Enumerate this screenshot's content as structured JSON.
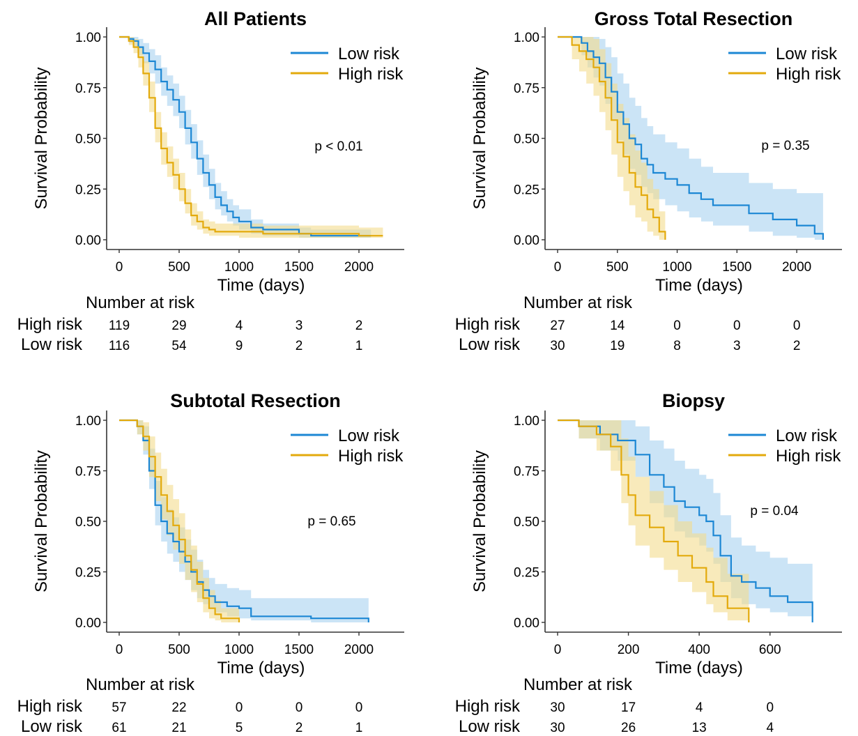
{
  "colors": {
    "low_risk": "#1c87d4",
    "high_risk": "#e3aa0c",
    "low_fill": "#a8d2f0",
    "high_fill": "#f3dc8e",
    "axis": "#333333"
  },
  "chart_data": [
    {
      "type": "line",
      "title": "All Patients",
      "xlabel": "Time (days)",
      "ylabel": "Survival Probability",
      "xlim": [
        0,
        2250
      ],
      "ylim": [
        0,
        1
      ],
      "xticks": [
        0,
        500,
        1000,
        1500,
        2000
      ],
      "yticks": [
        "0.00",
        "0.25",
        "0.50",
        "0.75",
        "1.00"
      ],
      "legend_position": "top-right",
      "pvalue": "p < 0.01",
      "series": [
        {
          "name": "Low risk",
          "color": "#1c87d4",
          "x": [
            0,
            40,
            80,
            120,
            160,
            200,
            250,
            300,
            350,
            400,
            450,
            500,
            550,
            600,
            650,
            700,
            750,
            800,
            850,
            900,
            950,
            1000,
            1100,
            1200,
            1300,
            1500,
            1600,
            1800,
            2000,
            2100
          ],
          "y": [
            1.0,
            1.0,
            0.99,
            0.98,
            0.95,
            0.92,
            0.88,
            0.84,
            0.78,
            0.74,
            0.69,
            0.63,
            0.55,
            0.48,
            0.4,
            0.33,
            0.27,
            0.21,
            0.17,
            0.14,
            0.11,
            0.09,
            0.06,
            0.05,
            0.05,
            0.03,
            0.02,
            0.02,
            0.02,
            0.02
          ],
          "lower": [
            1.0,
            1.0,
            0.97,
            0.95,
            0.91,
            0.87,
            0.82,
            0.77,
            0.71,
            0.66,
            0.61,
            0.55,
            0.47,
            0.4,
            0.32,
            0.26,
            0.2,
            0.15,
            0.12,
            0.09,
            0.07,
            0.05,
            0.03,
            0.02,
            0.02,
            0.01,
            0.01,
            0.01,
            0.01,
            0.01
          ],
          "upper": [
            1.0,
            1.0,
            1.0,
            1.0,
            0.99,
            0.97,
            0.94,
            0.91,
            0.85,
            0.81,
            0.77,
            0.71,
            0.64,
            0.57,
            0.49,
            0.42,
            0.35,
            0.28,
            0.24,
            0.2,
            0.17,
            0.15,
            0.1,
            0.08,
            0.08,
            0.06,
            0.05,
            0.05,
            0.05,
            0.05
          ]
        },
        {
          "name": "High risk",
          "color": "#e3aa0c",
          "x": [
            0,
            40,
            80,
            120,
            160,
            200,
            250,
            300,
            350,
            400,
            450,
            500,
            550,
            600,
            650,
            700,
            750,
            800,
            900,
            1000,
            1200,
            1500,
            2000,
            2200
          ],
          "y": [
            1.0,
            1.0,
            0.98,
            0.95,
            0.9,
            0.82,
            0.7,
            0.55,
            0.45,
            0.38,
            0.32,
            0.25,
            0.18,
            0.12,
            0.09,
            0.06,
            0.05,
            0.04,
            0.04,
            0.04,
            0.03,
            0.03,
            0.02,
            0.02
          ],
          "lower": [
            1.0,
            1.0,
            0.96,
            0.92,
            0.85,
            0.76,
            0.63,
            0.48,
            0.37,
            0.31,
            0.25,
            0.19,
            0.13,
            0.07,
            0.05,
            0.03,
            0.02,
            0.02,
            0.02,
            0.01,
            0.01,
            0.01,
            0.01,
            0.01
          ],
          "upper": [
            1.0,
            1.0,
            1.0,
            0.99,
            0.95,
            0.88,
            0.78,
            0.63,
            0.53,
            0.46,
            0.4,
            0.33,
            0.25,
            0.18,
            0.14,
            0.1,
            0.09,
            0.08,
            0.08,
            0.08,
            0.07,
            0.07,
            0.06,
            0.06
          ]
        }
      ],
      "risk_table": {
        "title": "Number at risk",
        "times": [
          0,
          500,
          1000,
          1500,
          2000
        ],
        "rows": [
          {
            "label": "High risk",
            "values": [
              "119",
              "29",
              "4",
              "3",
              "2"
            ]
          },
          {
            "label": "Low risk",
            "values": [
              "116",
              "54",
              "9",
              "2",
              "1"
            ]
          }
        ]
      }
    },
    {
      "type": "line",
      "title": "Gross Total Resection",
      "xlabel": "Time (days)",
      "ylabel": "Survival Probability",
      "xlim": [
        0,
        2250
      ],
      "ylim": [
        0,
        1
      ],
      "xticks": [
        0,
        500,
        1000,
        1500,
        2000
      ],
      "yticks": [
        "0.00",
        "0.25",
        "0.50",
        "0.75",
        "1.00"
      ],
      "legend_position": "top-right",
      "pvalue": "p = 0.35",
      "series": [
        {
          "name": "Low risk",
          "color": "#1c87d4",
          "x": [
            0,
            150,
            200,
            250,
            300,
            350,
            400,
            450,
            500,
            550,
            600,
            650,
            700,
            750,
            800,
            900,
            1000,
            1100,
            1200,
            1300,
            1400,
            1600,
            1800,
            2000,
            2150,
            2220
          ],
          "y": [
            1.0,
            1.0,
            0.97,
            0.93,
            0.9,
            0.87,
            0.8,
            0.73,
            0.63,
            0.57,
            0.5,
            0.47,
            0.4,
            0.37,
            0.33,
            0.3,
            0.27,
            0.23,
            0.2,
            0.17,
            0.17,
            0.13,
            0.1,
            0.07,
            0.03,
            0.0
          ],
          "lower": [
            1.0,
            1.0,
            0.91,
            0.85,
            0.8,
            0.76,
            0.67,
            0.59,
            0.49,
            0.42,
            0.35,
            0.32,
            0.26,
            0.23,
            0.2,
            0.17,
            0.14,
            0.11,
            0.09,
            0.07,
            0.07,
            0.04,
            0.02,
            0.01,
            0.0,
            0.0
          ],
          "upper": [
            1.0,
            1.0,
            1.0,
            1.0,
            1.0,
            0.99,
            0.95,
            0.9,
            0.82,
            0.77,
            0.7,
            0.66,
            0.6,
            0.56,
            0.52,
            0.48,
            0.45,
            0.4,
            0.36,
            0.33,
            0.33,
            0.28,
            0.25,
            0.23,
            0.23,
            0.23
          ]
        },
        {
          "name": "High risk",
          "color": "#e3aa0c",
          "x": [
            0,
            120,
            180,
            240,
            300,
            350,
            400,
            450,
            500,
            550,
            600,
            650,
            700,
            750,
            800,
            850,
            900
          ],
          "y": [
            1.0,
            0.96,
            0.93,
            0.89,
            0.85,
            0.78,
            0.7,
            0.59,
            0.48,
            0.41,
            0.33,
            0.26,
            0.22,
            0.15,
            0.11,
            0.04,
            0.0
          ],
          "lower": [
            1.0,
            0.89,
            0.83,
            0.77,
            0.71,
            0.63,
            0.54,
            0.42,
            0.31,
            0.24,
            0.17,
            0.11,
            0.09,
            0.04,
            0.02,
            0.0,
            0.0
          ],
          "upper": [
            1.0,
            1.0,
            1.0,
            1.0,
            0.99,
            0.94,
            0.87,
            0.77,
            0.67,
            0.6,
            0.52,
            0.44,
            0.38,
            0.3,
            0.25,
            0.14,
            0.07
          ]
        }
      ],
      "risk_table": {
        "title": "Number at risk",
        "times": [
          0,
          500,
          1000,
          1500,
          2000
        ],
        "rows": [
          {
            "label": "High risk",
            "values": [
              "27",
              "14",
              "0",
              "0",
              "0"
            ]
          },
          {
            "label": "Low risk",
            "values": [
              "30",
              "19",
              "8",
              "3",
              "2"
            ]
          }
        ]
      }
    },
    {
      "type": "line",
      "title": "Subtotal Resection",
      "xlabel": "Time (days)",
      "ylabel": "Survival Probability",
      "xlim": [
        0,
        2250
      ],
      "ylim": [
        0,
        1
      ],
      "xticks": [
        0,
        500,
        1000,
        1500,
        2000
      ],
      "yticks": [
        "0.00",
        "0.25",
        "0.50",
        "0.75",
        "1.00"
      ],
      "legend_position": "top-right",
      "pvalue": "p = 0.65",
      "series": [
        {
          "name": "Low risk",
          "color": "#1c87d4",
          "x": [
            0,
            100,
            150,
            200,
            250,
            300,
            350,
            400,
            450,
            500,
            550,
            600,
            650,
            700,
            750,
            800,
            900,
            1000,
            1100,
            1200,
            1600,
            2000,
            2080
          ],
          "y": [
            1.0,
            1.0,
            0.97,
            0.9,
            0.75,
            0.58,
            0.5,
            0.44,
            0.4,
            0.35,
            0.3,
            0.25,
            0.2,
            0.16,
            0.13,
            0.1,
            0.08,
            0.07,
            0.03,
            0.03,
            0.02,
            0.02,
            0.0
          ],
          "lower": [
            1.0,
            1.0,
            0.93,
            0.83,
            0.66,
            0.48,
            0.4,
            0.34,
            0.3,
            0.25,
            0.21,
            0.16,
            0.12,
            0.09,
            0.07,
            0.05,
            0.03,
            0.02,
            0.01,
            0.01,
            0.0,
            0.0,
            0.0
          ],
          "upper": [
            1.0,
            1.0,
            1.0,
            0.97,
            0.86,
            0.7,
            0.62,
            0.56,
            0.52,
            0.47,
            0.41,
            0.36,
            0.31,
            0.26,
            0.22,
            0.19,
            0.17,
            0.16,
            0.12,
            0.12,
            0.12,
            0.12,
            0.12
          ]
        },
        {
          "name": "High risk",
          "color": "#e3aa0c",
          "x": [
            0,
            100,
            150,
            200,
            250,
            300,
            350,
            400,
            450,
            500,
            550,
            600,
            650,
            700,
            750,
            800,
            850,
            900,
            1000
          ],
          "y": [
            1.0,
            1.0,
            0.97,
            0.92,
            0.82,
            0.72,
            0.63,
            0.55,
            0.48,
            0.41,
            0.33,
            0.26,
            0.19,
            0.12,
            0.07,
            0.04,
            0.02,
            0.02,
            0.0
          ],
          "lower": [
            1.0,
            1.0,
            0.93,
            0.85,
            0.72,
            0.6,
            0.51,
            0.43,
            0.36,
            0.29,
            0.21,
            0.15,
            0.1,
            0.05,
            0.02,
            0.01,
            0.0,
            0.0,
            0.0
          ],
          "upper": [
            1.0,
            1.0,
            1.0,
            0.99,
            0.92,
            0.84,
            0.76,
            0.68,
            0.61,
            0.54,
            0.46,
            0.38,
            0.3,
            0.22,
            0.16,
            0.11,
            0.07,
            0.07,
            0.05
          ]
        }
      ],
      "risk_table": {
        "title": "Number at risk",
        "times": [
          0,
          500,
          1000,
          1500,
          2000
        ],
        "rows": [
          {
            "label": "High risk",
            "values": [
              "57",
              "22",
              "0",
              "0",
              "0"
            ]
          },
          {
            "label": "Low risk",
            "values": [
              "61",
              "21",
              "5",
              "2",
              "1"
            ]
          }
        ]
      }
    },
    {
      "type": "line",
      "title": "Biopsy",
      "xlabel": "Time (days)",
      "ylabel": "Survival Probability",
      "xlim": [
        0,
        760
      ],
      "ylim": [
        0,
        1
      ],
      "xticks": [
        0,
        200,
        400,
        600
      ],
      "yticks": [
        "0.00",
        "0.25",
        "0.50",
        "0.75",
        "1.00"
      ],
      "legend_position": "top-right",
      "pvalue": "p = 0.04",
      "series": [
        {
          "name": "Low risk",
          "color": "#1c87d4",
          "x": [
            0,
            60,
            120,
            170,
            220,
            260,
            300,
            330,
            360,
            400,
            420,
            440,
            460,
            490,
            520,
            560,
            600,
            650,
            700,
            720
          ],
          "y": [
            1.0,
            0.97,
            0.93,
            0.9,
            0.83,
            0.73,
            0.67,
            0.6,
            0.57,
            0.53,
            0.5,
            0.43,
            0.33,
            0.23,
            0.2,
            0.17,
            0.13,
            0.1,
            0.1,
            0.0
          ],
          "lower": [
            1.0,
            0.91,
            0.85,
            0.8,
            0.72,
            0.59,
            0.52,
            0.45,
            0.42,
            0.38,
            0.35,
            0.29,
            0.2,
            0.12,
            0.09,
            0.07,
            0.05,
            0.03,
            0.03,
            0.0
          ],
          "upper": [
            1.0,
            1.0,
            1.0,
            1.0,
            0.97,
            0.9,
            0.86,
            0.8,
            0.76,
            0.73,
            0.71,
            0.64,
            0.53,
            0.42,
            0.38,
            0.35,
            0.32,
            0.29,
            0.29,
            0.29
          ]
        },
        {
          "name": "High risk",
          "color": "#e3aa0c",
          "x": [
            0,
            60,
            110,
            150,
            180,
            200,
            220,
            260,
            300,
            340,
            380,
            420,
            440,
            480,
            540
          ],
          "y": [
            1.0,
            0.97,
            0.93,
            0.87,
            0.73,
            0.63,
            0.53,
            0.47,
            0.4,
            0.33,
            0.27,
            0.2,
            0.13,
            0.07,
            0.0
          ],
          "lower": [
            1.0,
            0.91,
            0.85,
            0.75,
            0.59,
            0.48,
            0.38,
            0.32,
            0.26,
            0.2,
            0.15,
            0.09,
            0.05,
            0.01,
            0.0
          ],
          "upper": [
            1.0,
            1.0,
            1.0,
            1.0,
            0.91,
            0.82,
            0.72,
            0.65,
            0.58,
            0.5,
            0.44,
            0.37,
            0.32,
            0.24,
            0.24
          ]
        }
      ],
      "risk_table": {
        "title": "Number at risk",
        "times": [
          0,
          200,
          400,
          600
        ],
        "rows": [
          {
            "label": "High risk",
            "values": [
              "30",
              "17",
              "4",
              "0"
            ]
          },
          {
            "label": "Low risk",
            "values": [
              "30",
              "26",
              "13",
              "4"
            ]
          }
        ]
      }
    }
  ]
}
